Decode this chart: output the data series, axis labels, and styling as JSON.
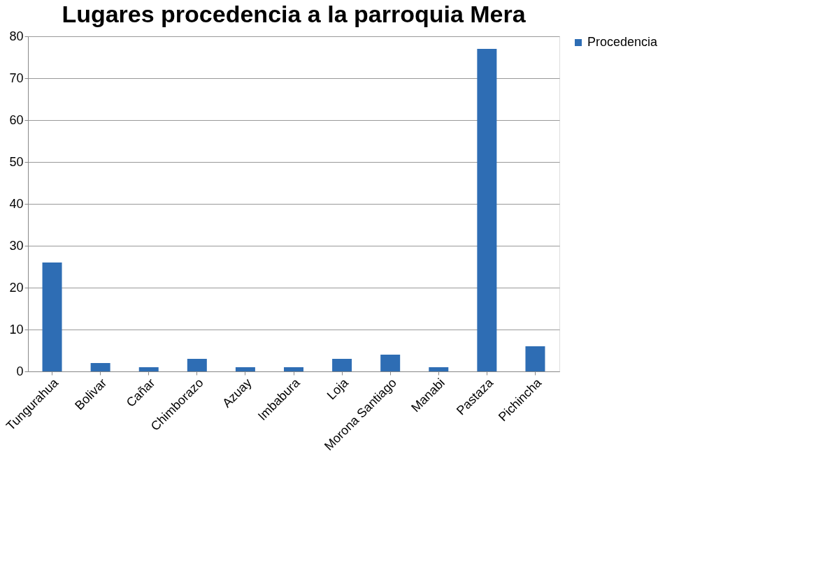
{
  "chart_data": {
    "type": "bar",
    "title": "Lugares procedencia a la parroquia Mera",
    "categories": [
      "Tungurahua",
      "Bolivar",
      "Cañar",
      "Chimborazo",
      "Azuay",
      "Imbabura",
      "Loja",
      "Morona Santiago",
      "Manabi",
      "Pastaza",
      "Pichincha"
    ],
    "series": [
      {
        "name": "Procedencia",
        "color": "#2e6db4",
        "values": [
          26,
          2,
          1,
          3,
          1,
          1,
          3,
          4,
          1,
          77,
          6
        ]
      }
    ],
    "ylim": [
      0,
      80
    ],
    "yticks": [
      0,
      10,
      20,
      30,
      40,
      50,
      60,
      70,
      80
    ],
    "grid": "y",
    "legend": "right"
  }
}
